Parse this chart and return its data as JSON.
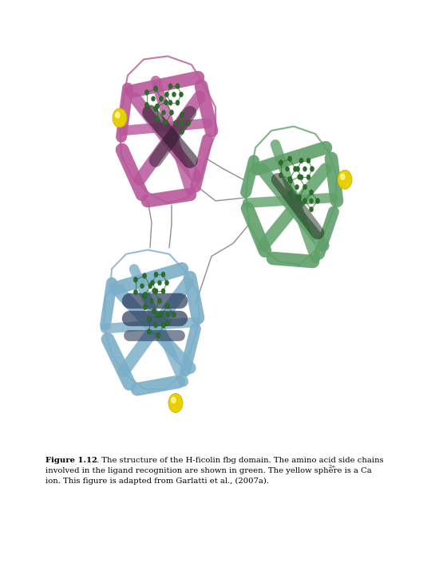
{
  "figure_width": 5.4,
  "figure_height": 7.2,
  "dpi": 100,
  "background_color": "#ffffff",
  "caption_bold_prefix": "Figure 1.12",
  "caption_text_1": ". The structure of the H-ficolin fbg domain. The amino acid side chains",
  "caption_text_2": "involved in the ligand recognition are shown in green. The yellow sphere is a Ca",
  "caption_superscript": "2+",
  "caption_text_3": "ion. This figure is adapted from Garlatti et al., (2007a).",
  "caption_fontsize": 7.2,
  "caption_fontfamily": "DejaVu Serif",
  "caption_color": "#000000",
  "magenta_color": "#b8579a",
  "green_color": "#5fa06a",
  "blue_color": "#7baec8",
  "dark_green_color": "#2a6e2a",
  "yellow_color": "#e8d000",
  "black_color": "#111111"
}
